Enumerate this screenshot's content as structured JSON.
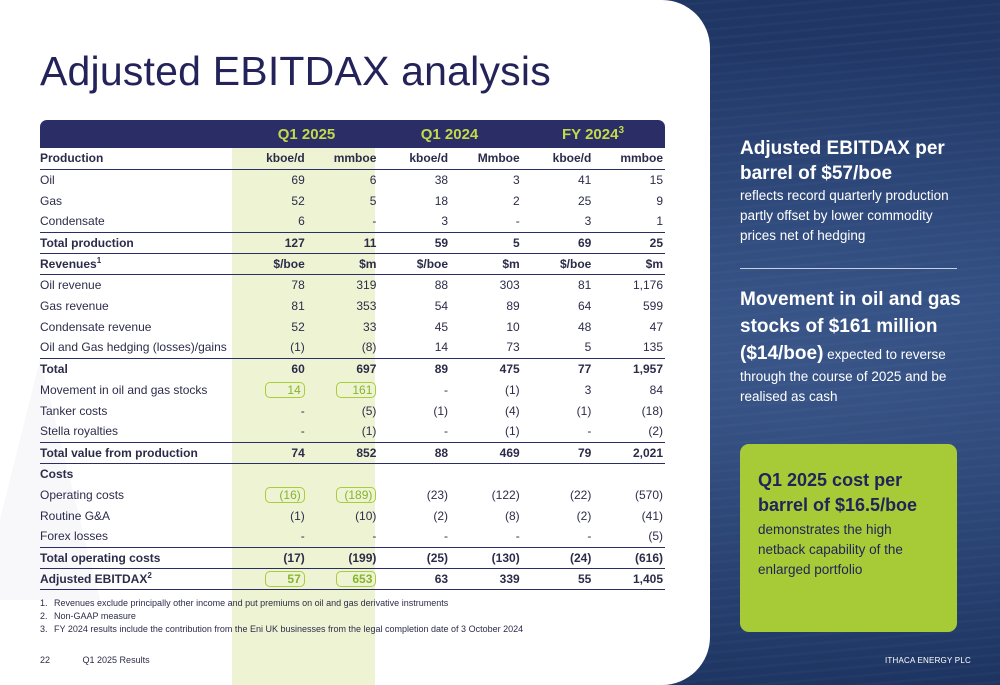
{
  "title": "Adjusted EBITDAX analysis",
  "groups": [
    {
      "label": "Q1 2025",
      "sup": ""
    },
    {
      "label": "Q1 2024",
      "sup": ""
    },
    {
      "label": "FY 2024",
      "sup": "3"
    }
  ],
  "rows": [
    {
      "label": "Production",
      "vals": [
        "kboe/d",
        "mmboe",
        "kboe/d",
        "Mmboe",
        "kboe/d",
        "mmboe"
      ],
      "style": "bold",
      "line": "b"
    },
    {
      "label": "Oil",
      "vals": [
        "69",
        "6",
        "38",
        "3",
        "41",
        "15"
      ]
    },
    {
      "label": "Gas",
      "vals": [
        "52",
        "5",
        "18",
        "2",
        "25",
        "9"
      ]
    },
    {
      "label": "Condensate",
      "vals": [
        "6",
        "-",
        "3",
        "-",
        "3",
        "1"
      ]
    },
    {
      "label": "Total production",
      "vals": [
        "127",
        "11",
        "59",
        "5",
        "69",
        "25"
      ],
      "style": "bold",
      "line": "t"
    },
    {
      "label": "Revenues",
      "sup": "1",
      "vals": [
        "$/boe",
        "$m",
        "$/boe",
        "$m",
        "$/boe",
        "$m"
      ],
      "style": "bold",
      "line": "tb"
    },
    {
      "label": "Oil revenue",
      "vals": [
        "78",
        "319",
        "88",
        "303",
        "81",
        "1,176"
      ]
    },
    {
      "label": "Gas revenue",
      "vals": [
        "81",
        "353",
        "54",
        "89",
        "64",
        "599"
      ]
    },
    {
      "label": "Condensate revenue",
      "vals": [
        "52",
        "33",
        "45",
        "10",
        "48",
        "47"
      ]
    },
    {
      "label": "Oil and Gas hedging (losses)/gains",
      "vals": [
        "(1)",
        "(8)",
        "14",
        "73",
        "5",
        "135"
      ],
      "line": "b"
    },
    {
      "label": "Total",
      "vals": [
        "60",
        "697",
        "89",
        "475",
        "77",
        "1,957"
      ],
      "style": "bold"
    },
    {
      "label": "Movement in oil and gas stocks",
      "vals": [
        "14",
        "161",
        "-",
        "(1)",
        "3",
        "84"
      ],
      "boxed": true
    },
    {
      "label": "Tanker costs",
      "vals": [
        "-",
        "(5)",
        "(1)",
        "(4)",
        "(1)",
        "(18)"
      ]
    },
    {
      "label": "Stella royalties",
      "vals": [
        "-",
        "(1)",
        "-",
        "(1)",
        "-",
        "(2)"
      ],
      "line": "b"
    },
    {
      "label": "Total value from production",
      "vals": [
        "74",
        "852",
        "88",
        "469",
        "79",
        "2,021"
      ],
      "style": "bold",
      "line": "b"
    },
    {
      "label": "Costs",
      "vals": [
        "",
        "",
        "",
        "",
        "",
        ""
      ],
      "style": "bold"
    },
    {
      "label": "Operating costs",
      "vals": [
        "(16)",
        "(189)",
        "(23)",
        "(122)",
        "(22)",
        "(570)"
      ],
      "boxed": true
    },
    {
      "label": "Routine G&A",
      "vals": [
        "(1)",
        "(10)",
        "(2)",
        "(8)",
        "(2)",
        "(41)"
      ]
    },
    {
      "label": "Forex losses",
      "vals": [
        "-",
        "-",
        "-",
        "-",
        "-",
        "(5)"
      ],
      "line": "b"
    },
    {
      "label": "Total operating costs",
      "vals": [
        "(17)",
        "(199)",
        "(25)",
        "(130)",
        "(24)",
        "(616)"
      ],
      "style": "bold",
      "line": "b"
    },
    {
      "label": "Adjusted EBITDAX",
      "sup": "2",
      "vals": [
        "57",
        "653",
        "63",
        "339",
        "55",
        "1,405"
      ],
      "style": "bold",
      "boxed": true,
      "line": "thick"
    }
  ],
  "footnotes": [
    {
      "n": "1.",
      "text": "Revenues exclude principally other income and put premiums on oil and gas derivative instruments"
    },
    {
      "n": "2.",
      "text": "Non-GAAP measure"
    },
    {
      "n": "3.",
      "text": "FY 2024 results include the contribution from the Eni UK businesses from the legal completion date of 3 October 2024"
    }
  ],
  "footer": {
    "page": "22",
    "deck": "Q1 2025 Results",
    "company": "ITHACA ENERGY PLC"
  },
  "side1": {
    "heading": "Adjusted EBITDAX per barrel of $57/boe",
    "body": "reflects record quarterly production partly offset by lower commodity prices net of hedging"
  },
  "side2": {
    "heading": "Movement in oil and gas stocks of $161 million ($14/boe)",
    "body": " expected to reverse through the course of 2025 and be realised as cash"
  },
  "card": {
    "heading": "Q1 2025 cost per barrel of $16.5/boe",
    "body": "demonstrates the high netback capability of the enlarged portfolio"
  },
  "colors": {
    "navy": "#2b2e66",
    "lime": "#a7cb37",
    "highlight": "#eef4d3"
  }
}
